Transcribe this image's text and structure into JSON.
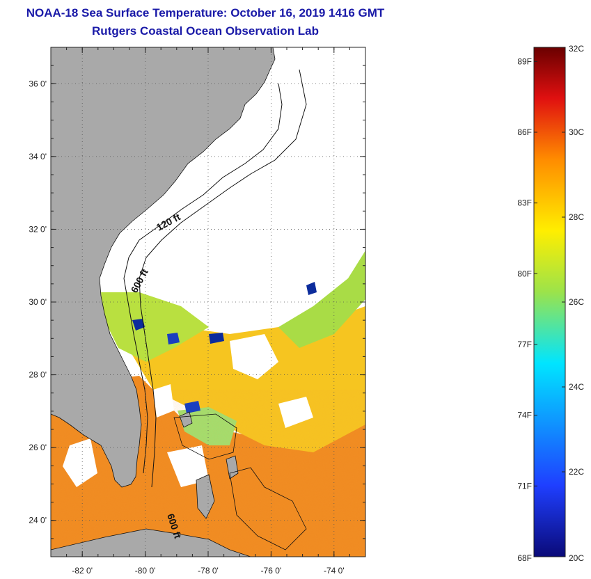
{
  "header": {
    "title": "NOAA-18 Sea Surface Temperature:  October 16, 2019 1416 GMT",
    "subtitle": "Rutgers Coastal Ocean Observation Lab"
  },
  "map": {
    "lon_range": [
      -83,
      -73
    ],
    "lat_range": [
      23,
      37
    ],
    "lon_ticks": [
      {
        "value": -82,
        "label": "-82 0'"
      },
      {
        "value": -80,
        "label": "-80 0'"
      },
      {
        "value": -78,
        "label": "-78 0'"
      },
      {
        "value": -76,
        "label": "-76 0'"
      },
      {
        "value": -74,
        "label": "-74 0'"
      }
    ],
    "lat_ticks": [
      {
        "value": 24,
        "label": "24 0'"
      },
      {
        "value": 26,
        "label": "26 0'"
      },
      {
        "value": 28,
        "label": "28 0'"
      },
      {
        "value": 30,
        "label": "30 0'"
      },
      {
        "value": 32,
        "label": "32 0'"
      },
      {
        "value": 34,
        "label": "34 0'"
      },
      {
        "value": 36,
        "label": "36 0'"
      }
    ],
    "grid": "dotted",
    "contour_labels": [
      "120 ft",
      "600 ft",
      "600 ft"
    ],
    "colors": {
      "land": "#a9a9a9",
      "cloud": "#ffffff",
      "warm": "#f07a1c",
      "mid": "#f5c31a",
      "cool": "#a6dd3c",
      "cold": "#0c2c9c"
    }
  },
  "colorbar": {
    "range_c": [
      20,
      32
    ],
    "fahrenheit_labels": [
      "89F",
      "86F",
      "83F",
      "80F",
      "77F",
      "74F",
      "71F",
      "68F"
    ],
    "celsius_labels": [
      "32C",
      "30C",
      "28C",
      "26C",
      "24C",
      "22C",
      "20C"
    ],
    "fahrenheit_values": [
      89,
      86,
      83,
      80,
      77,
      74,
      71,
      68
    ],
    "celsius_values": [
      32,
      30,
      28,
      26,
      24,
      22,
      20
    ],
    "stops": [
      "#0a0a78",
      "#1f3fff",
      "#00e5ff",
      "#9ce34a",
      "#ffee00",
      "#ff8c00",
      "#e01010",
      "#6a0000"
    ]
  }
}
